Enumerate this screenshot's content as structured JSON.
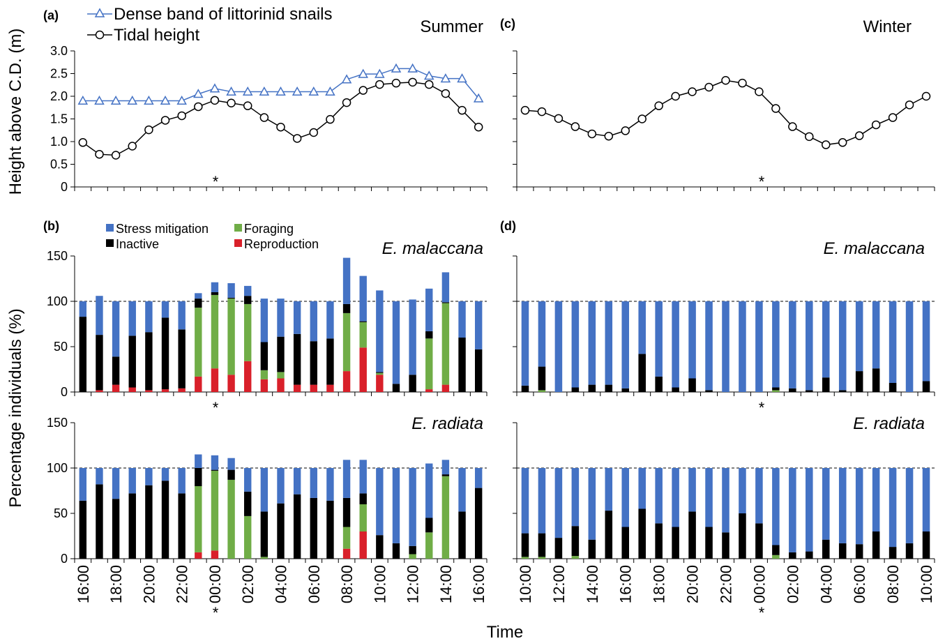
{
  "colors": {
    "stress": "#4472c4",
    "foraging": "#70ad47",
    "inactive": "#000000",
    "reproduction": "#d9202a",
    "snail_line": "#4472c4",
    "tidal_line": "#000000"
  },
  "labels": {
    "a": "(a)",
    "b": "(b)",
    "c": "(c)",
    "d": "(d)",
    "summer": "Summer",
    "winter": "Winter",
    "ylabel_top": "Height above C.D. (m)",
    "ylabel_bottom": "Percentage individuals (%)",
    "xlabel": "Time",
    "species1": "E. malaccana",
    "species2": "E. radiata",
    "star": "*"
  },
  "legend_top": [
    "Dense band of littorinid snails",
    "Tidal height"
  ],
  "legend_behaviour": [
    "Stress mitigation",
    "Foraging",
    "Inactive",
    "Reproduction"
  ],
  "axis": {
    "height_ticks": [
      "0",
      "0.5",
      "1.0",
      "1.5",
      "2.0",
      "2.5",
      "3.0"
    ],
    "pct_ticks": [
      "0",
      "50",
      "100",
      "150"
    ]
  },
  "chart_data": [
    {
      "panel": "a",
      "type": "line",
      "season": "Summer",
      "x": [
        "16:00",
        "17:00",
        "18:00",
        "19:00",
        "20:00",
        "21:00",
        "22:00",
        "23:00",
        "00:00",
        "01:00",
        "02:00",
        "03:00",
        "04:00",
        "05:00",
        "06:00",
        "07:00",
        "08:00",
        "09:00",
        "10:00",
        "11:00",
        "12:00",
        "13:00",
        "14:00",
        "15:00",
        "16:00"
      ],
      "series": [
        {
          "name": "Dense band of littorinid snails",
          "values": [
            1.9,
            1.9,
            1.9,
            1.9,
            1.9,
            1.9,
            1.9,
            2.05,
            2.17,
            2.1,
            2.1,
            2.1,
            2.1,
            2.1,
            2.1,
            2.1,
            2.37,
            2.49,
            2.49,
            2.61,
            2.61,
            2.45,
            2.39,
            2.39,
            1.95
          ]
        },
        {
          "name": "Tidal height",
          "values": [
            0.98,
            0.72,
            0.7,
            0.9,
            1.26,
            1.47,
            1.57,
            1.77,
            1.91,
            1.85,
            1.79,
            1.53,
            1.32,
            1.07,
            1.2,
            1.49,
            1.86,
            2.13,
            2.26,
            2.29,
            2.31,
            2.26,
            2.06,
            1.69,
            1.32
          ]
        }
      ],
      "ylim": [
        0,
        3.0
      ],
      "ylabel": "Height above C.D. (m)",
      "legend": "top-left"
    },
    {
      "panel": "c",
      "type": "line",
      "season": "Winter",
      "x": [
        "10:00",
        "11:00",
        "12:00",
        "13:00",
        "14:00",
        "15:00",
        "16:00",
        "17:00",
        "18:00",
        "19:00",
        "20:00",
        "21:00",
        "22:00",
        "23:00",
        "00:00",
        "01:00",
        "02:00",
        "03:00",
        "04:00",
        "05:00",
        "06:00",
        "07:00",
        "08:00",
        "09:00",
        "10:00"
      ],
      "series": [
        {
          "name": "Tidal height",
          "values": [
            1.69,
            1.66,
            1.51,
            1.33,
            1.17,
            1.12,
            1.24,
            1.5,
            1.79,
            2.0,
            2.1,
            2.2,
            2.35,
            2.29,
            2.1,
            1.73,
            1.33,
            1.11,
            0.93,
            0.98,
            1.13,
            1.37,
            1.53,
            1.81,
            2.0
          ]
        }
      ],
      "ylim": [
        0,
        3.0
      ]
    },
    {
      "panel": "b-top",
      "type": "bar",
      "season": "Summer",
      "species": "E. malaccana",
      "categories": [
        "16:00",
        "17:00",
        "18:00",
        "19:00",
        "20:00",
        "21:00",
        "22:00",
        "23:00",
        "00:00",
        "01:00",
        "02:00",
        "03:00",
        "04:00",
        "05:00",
        "06:00",
        "07:00",
        "08:00",
        "09:00",
        "10:00",
        "11:00",
        "12:00",
        "13:00",
        "14:00",
        "15:00",
        "16:00"
      ],
      "series": [
        {
          "name": "Reproduction",
          "values": [
            0,
            2,
            8,
            5,
            2,
            3,
            4,
            17,
            26,
            19,
            34,
            14,
            15,
            8,
            8,
            8,
            23,
            49,
            19,
            0,
            0,
            3,
            8,
            0,
            0
          ]
        },
        {
          "name": "Foraging",
          "values": [
            0,
            0,
            0,
            0,
            0,
            0,
            0,
            76,
            81,
            84,
            63,
            10,
            7,
            0,
            0,
            0,
            64,
            28,
            2,
            0,
            0,
            56,
            90,
            0,
            0
          ]
        },
        {
          "name": "Inactive",
          "values": [
            83,
            61,
            31,
            57,
            64,
            79,
            65,
            10,
            3,
            1,
            9,
            31,
            39,
            56,
            48,
            51,
            10,
            1,
            1,
            9,
            19,
            8,
            1,
            60,
            47
          ]
        },
        {
          "name": "Stress mitigation",
          "values": [
            17,
            43,
            61,
            38,
            34,
            18,
            31,
            6,
            11,
            16,
            11,
            48,
            42,
            36,
            44,
            41,
            51,
            50,
            90,
            91,
            83,
            47,
            33,
            40,
            53
          ]
        }
      ],
      "ylim": [
        0,
        150
      ],
      "ylabel": "Percentage individuals (%)"
    },
    {
      "panel": "b-bottom",
      "type": "bar",
      "season": "Summer",
      "species": "E. radiata",
      "categories": [
        "16:00",
        "17:00",
        "18:00",
        "19:00",
        "20:00",
        "21:00",
        "22:00",
        "23:00",
        "00:00",
        "01:00",
        "02:00",
        "03:00",
        "04:00",
        "05:00",
        "06:00",
        "07:00",
        "08:00",
        "09:00",
        "10:00",
        "11:00",
        "12:00",
        "13:00",
        "14:00",
        "15:00",
        "16:00"
      ],
      "series": [
        {
          "name": "Reproduction",
          "values": [
            0,
            0,
            0,
            0,
            0,
            0,
            0,
            7,
            9,
            0,
            0,
            0,
            0,
            0,
            0,
            0,
            11,
            30,
            0,
            0,
            0,
            0,
            0,
            0,
            0
          ]
        },
        {
          "name": "Foraging",
          "values": [
            0,
            0,
            0,
            0,
            0,
            0,
            0,
            73,
            88,
            87,
            47,
            2,
            0,
            0,
            0,
            0,
            24,
            30,
            0,
            0,
            5,
            29,
            91,
            0,
            0
          ]
        },
        {
          "name": "Inactive",
          "values": [
            64,
            82,
            66,
            72,
            81,
            86,
            72,
            20,
            1,
            11,
            27,
            50,
            61,
            71,
            67,
            64,
            32,
            12,
            26,
            17,
            9,
            16,
            2,
            52,
            78
          ]
        },
        {
          "name": "Stress mitigation",
          "values": [
            36,
            18,
            34,
            28,
            19,
            14,
            28,
            15,
            16,
            13,
            26,
            48,
            39,
            29,
            33,
            36,
            42,
            37,
            74,
            83,
            86,
            60,
            16,
            48,
            22
          ]
        }
      ],
      "ylim": [
        0,
        150
      ]
    },
    {
      "panel": "d-top",
      "type": "bar",
      "season": "Winter",
      "species": "E. malaccana",
      "categories": [
        "10:00",
        "11:00",
        "12:00",
        "13:00",
        "14:00",
        "15:00",
        "16:00",
        "17:00",
        "18:00",
        "19:00",
        "20:00",
        "21:00",
        "22:00",
        "23:00",
        "00:00",
        "01:00",
        "02:00",
        "03:00",
        "04:00",
        "05:00",
        "06:00",
        "07:00",
        "08:00",
        "09:00",
        "10:00"
      ],
      "series": [
        {
          "name": "Reproduction",
          "values": [
            0,
            0,
            0,
            0,
            0,
            0,
            0,
            0,
            0,
            0,
            0,
            0,
            0,
            0,
            0,
            0,
            0,
            0,
            0,
            0,
            0,
            0,
            0,
            0,
            0
          ]
        },
        {
          "name": "Foraging",
          "values": [
            0,
            2,
            0,
            0,
            0,
            0,
            0,
            0,
            0,
            0,
            0,
            0,
            0,
            0,
            0,
            2,
            0,
            0,
            0,
            0,
            0,
            0,
            0,
            0,
            0
          ]
        },
        {
          "name": "Inactive",
          "values": [
            7,
            26,
            0,
            5,
            8,
            8,
            4,
            42,
            17,
            5,
            15,
            2,
            0,
            0,
            0,
            3,
            4,
            2,
            16,
            2,
            23,
            26,
            10,
            0,
            12
          ]
        },
        {
          "name": "Stress mitigation",
          "values": [
            93,
            72,
            100,
            95,
            92,
            92,
            96,
            58,
            83,
            95,
            85,
            98,
            100,
            100,
            100,
            95,
            96,
            98,
            84,
            98,
            77,
            74,
            90,
            100,
            88
          ]
        }
      ],
      "ylim": [
        0,
        150
      ]
    },
    {
      "panel": "d-bottom",
      "type": "bar",
      "season": "Winter",
      "species": "E. radiata",
      "categories": [
        "10:00",
        "11:00",
        "12:00",
        "13:00",
        "14:00",
        "15:00",
        "16:00",
        "17:00",
        "18:00",
        "19:00",
        "20:00",
        "21:00",
        "22:00",
        "23:00",
        "00:00",
        "01:00",
        "02:00",
        "03:00",
        "04:00",
        "05:00",
        "06:00",
        "07:00",
        "08:00",
        "09:00",
        "10:00"
      ],
      "series": [
        {
          "name": "Reproduction",
          "values": [
            0,
            0,
            0,
            0,
            0,
            0,
            0,
            0,
            0,
            0,
            0,
            0,
            0,
            0,
            0,
            0,
            0,
            0,
            0,
            0,
            0,
            0,
            0,
            0,
            0
          ]
        },
        {
          "name": "Foraging",
          "values": [
            2,
            2,
            0,
            3,
            0,
            0,
            0,
            0,
            0,
            0,
            0,
            0,
            0,
            0,
            0,
            4,
            0,
            0,
            0,
            0,
            0,
            0,
            0,
            0,
            0
          ]
        },
        {
          "name": "Inactive",
          "values": [
            26,
            26,
            23,
            33,
            21,
            53,
            35,
            55,
            39,
            35,
            52,
            35,
            29,
            50,
            39,
            11,
            7,
            8,
            21,
            17,
            16,
            30,
            13,
            17,
            30
          ]
        },
        {
          "name": "Stress mitigation",
          "values": [
            72,
            72,
            77,
            64,
            79,
            47,
            65,
            45,
            61,
            65,
            48,
            65,
            71,
            50,
            61,
            85,
            93,
            92,
            79,
            83,
            84,
            70,
            87,
            83,
            70
          ]
        }
      ],
      "ylim": [
        0,
        150
      ]
    }
  ]
}
